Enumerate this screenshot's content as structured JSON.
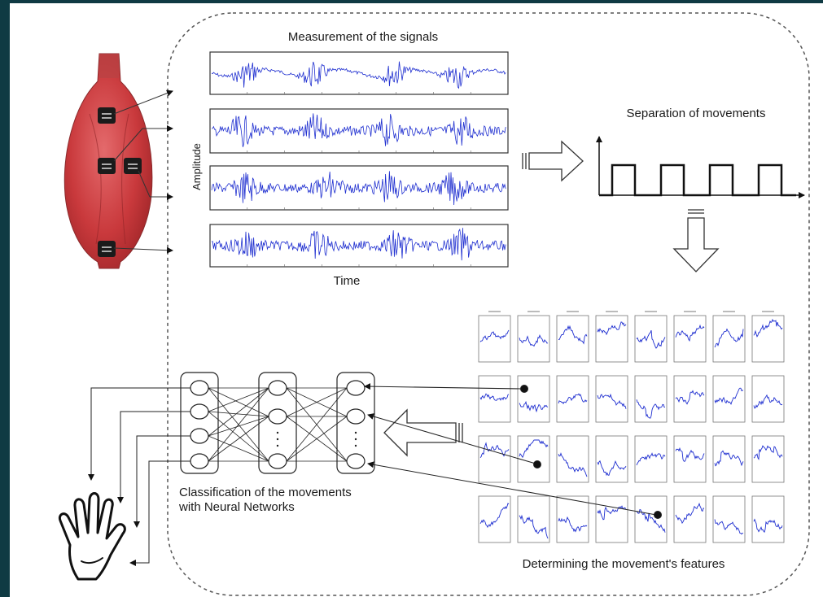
{
  "labels": {
    "measurement_title": "Measurement of the signals",
    "amplitude_axis": "Amplitude",
    "time_axis": "Time",
    "separation_title": "Separation of movements",
    "classification_line1": "Classification of the movements",
    "classification_line2": "with Neural Networks",
    "features_title": "Determining the movement's features"
  },
  "icons": {
    "muscle": "muscle-icon",
    "hand": "hand-icon",
    "electrode": "electrode-icon",
    "arrow": "hollow-arrow-icon"
  },
  "colors": {
    "background": "#0f3a43",
    "signal": "#1f2fd0",
    "muscle": "#c9393c",
    "muscle_highlight": "#e06668",
    "electrode": "#1b1b1b",
    "panel_border": "#333333",
    "dashed_border": "#555555"
  },
  "signals": [
    {
      "name": "signal-1",
      "bursts": [
        0.12,
        0.35,
        0.62,
        0.83
      ]
    },
    {
      "name": "signal-2",
      "bursts": [
        0.1,
        0.35,
        0.6,
        0.85
      ]
    },
    {
      "name": "signal-3",
      "bursts": [
        0.12,
        0.4,
        0.6,
        0.82
      ]
    },
    {
      "name": "signal-4",
      "bursts": [
        0.12,
        0.36,
        0.63,
        0.85
      ]
    }
  ],
  "pulse_count": 4,
  "feature_grid": {
    "rows": 4,
    "cols": 8
  },
  "neural_network": {
    "layers": [
      4,
      3,
      3
    ]
  }
}
